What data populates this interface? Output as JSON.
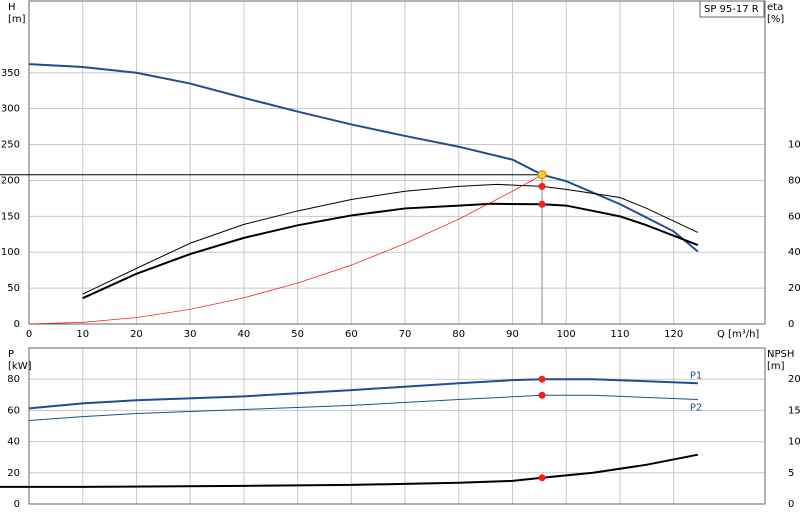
{
  "chart_data": [
    {
      "type": "line",
      "title": "SP 95-17 R",
      "xlabel": "Q [m³/h]",
      "ylabel": [
        "H",
        "[m]"
      ],
      "y2label": [
        "eta",
        "[%]"
      ],
      "xlim": [
        0,
        137
      ],
      "ylim": [
        0,
        450
      ],
      "y2lim": [
        0,
        180
      ],
      "xticks": [
        0,
        10,
        20,
        30,
        40,
        50,
        60,
        70,
        80,
        90,
        100,
        110,
        120
      ],
      "xtick_labels": true,
      "yticks": [
        0,
        50,
        100,
        150,
        200,
        250,
        300,
        350
      ],
      "y2ticks": [
        0,
        20,
        40,
        60,
        80,
        100
      ],
      "grid": true,
      "series": [
        {
          "color": "#1d4f91",
          "width": 2,
          "axis": "y",
          "x": [
            0,
            10,
            20,
            30,
            40,
            50,
            60,
            70,
            80,
            90,
            95.5,
            100,
            110,
            120,
            124.5
          ],
          "values": [
            362,
            358,
            350,
            335,
            315,
            296,
            278,
            262,
            247,
            229,
            208,
            199,
            167,
            129,
            101
          ]
        },
        {
          "color": "#000000",
          "width": 2,
          "axis": "y2",
          "x": [
            10,
            20,
            30,
            40,
            50,
            60,
            70,
            80,
            86,
            95.5,
            100,
            105,
            110,
            115,
            124.5
          ],
          "values": [
            14.4,
            28,
            39,
            48,
            55,
            60.5,
            64.4,
            66,
            67,
            66.7,
            66,
            63,
            60,
            55,
            44
          ]
        },
        {
          "color": "#000000",
          "width": 1,
          "axis": "y2",
          "x": [
            10,
            20,
            30,
            40,
            50,
            60,
            70,
            80,
            87,
            95.5,
            100,
            110,
            115,
            124.5
          ],
          "values": [
            16.7,
            31,
            45,
            55.5,
            63,
            69.4,
            74,
            76.7,
            77.8,
            76.7,
            75,
            70.5,
            64.4,
            51
          ]
        },
        {
          "color": "#ff0000",
          "width": 0.7,
          "axis": "y",
          "x": [
            0,
            10,
            20,
            30,
            40,
            50,
            60,
            70,
            80,
            90,
            95.5
          ],
          "values": [
            0,
            2.3,
            9,
            20.5,
            36.5,
            57,
            82,
            112,
            146,
            185,
            208
          ]
        }
      ],
      "duty_point": {
        "x": 95.5,
        "y": 208,
        "color": "#ffd21f"
      }
    },
    {
      "type": "line",
      "ylabel": [
        "P",
        "[kW]"
      ],
      "y2label": [
        "NPSH",
        "[m]"
      ],
      "xlim": [
        0,
        137
      ],
      "ylim": [
        0,
        100
      ],
      "y2lim": [
        0,
        25
      ],
      "xticks": [
        0,
        10,
        20,
        30,
        40,
        50,
        60,
        70,
        80,
        90,
        100,
        110,
        120
      ],
      "xtick_labels": false,
      "yticks": [
        0,
        20,
        40,
        60,
        80
      ],
      "y2ticks": [
        0,
        5,
        10,
        15,
        20
      ],
      "grid": true,
      "series": [
        {
          "name": "P1",
          "color": "#1d4f91",
          "width": 2,
          "axis": "y",
          "x": [
            0,
            10,
            20,
            40,
            60,
            80,
            90,
            95.5,
            105,
            115,
            124.5
          ],
          "values": [
            61.3,
            64.5,
            66.5,
            69,
            73,
            77.4,
            79.4,
            80,
            80,
            78.7,
            77.4
          ]
        },
        {
          "name": "P2",
          "color": "#1d4f91",
          "width": 1,
          "axis": "y",
          "x": [
            0,
            10,
            20,
            40,
            60,
            80,
            95.5,
            105,
            124.5
          ],
          "values": [
            53.5,
            56,
            58,
            60.6,
            63.2,
            67,
            69.7,
            69.7,
            67
          ]
        },
        {
          "color": "#000000",
          "width": 2,
          "axis": "y2",
          "x": [
            10,
            40,
            60,
            80,
            90,
            95.5,
            105,
            115,
            124.5
          ],
          "values": [
            2.74,
            2.9,
            3.06,
            3.4,
            3.7,
            4.2,
            5,
            6.3,
            7.9
          ]
        }
      ],
      "duty_point": {
        "x": 95.5
      }
    }
  ]
}
